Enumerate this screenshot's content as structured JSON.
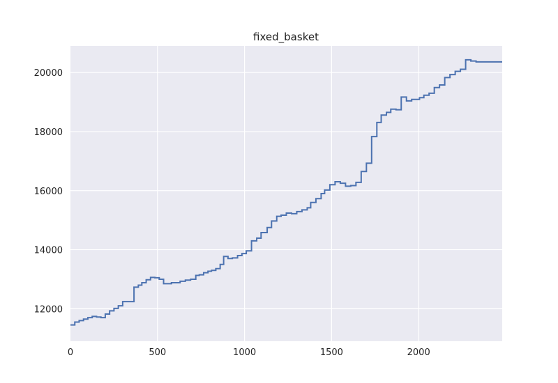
{
  "chart_data": {
    "type": "line",
    "drawstyle": "steps-post",
    "title": "fixed_basket",
    "xlabel": "",
    "ylabel": "",
    "xlim": [
      0,
      2480
    ],
    "ylim": [
      10900,
      20900
    ],
    "xticks": [
      0,
      500,
      1000,
      1500,
      2000
    ],
    "yticks": [
      12000,
      14000,
      16000,
      18000,
      20000
    ],
    "grid": true,
    "colors": {
      "background": "#eaeaf2",
      "grid": "#ffffff",
      "line": "#4c72b0"
    },
    "series": [
      {
        "x": [
          0,
          25,
          50,
          75,
          100,
          125,
          150,
          175,
          200,
          225,
          250,
          275,
          300,
          325,
          350,
          365,
          390,
          410,
          435,
          460,
          485,
          510,
          535,
          570,
          580,
          630,
          660,
          690,
          720,
          740,
          765,
          790,
          810,
          835,
          860,
          880,
          905,
          930,
          960,
          985,
          1010,
          1040,
          1070,
          1095,
          1130,
          1155,
          1185,
          1210,
          1240,
          1270,
          1300,
          1330,
          1360,
          1380,
          1410,
          1440,
          1460,
          1490,
          1520,
          1550,
          1580,
          1610,
          1640,
          1670,
          1700,
          1730,
          1760,
          1785,
          1815,
          1840,
          1870,
          1900,
          1930,
          1960,
          2005,
          2030,
          2060,
          2090,
          2120,
          2150,
          2180,
          2210,
          2240,
          2270,
          2300,
          2330,
          2360,
          2390,
          2420,
          2450,
          2480
        ],
        "y": [
          11450,
          11550,
          11600,
          11650,
          11700,
          11740,
          11720,
          11700,
          11820,
          11930,
          12010,
          12100,
          12240,
          12240,
          12240,
          12730,
          12800,
          12880,
          12980,
          13060,
          13050,
          13000,
          12850,
          12850,
          12880,
          12930,
          12970,
          13000,
          13130,
          13150,
          13220,
          13270,
          13300,
          13360,
          13500,
          13770,
          13700,
          13720,
          13800,
          13870,
          13960,
          14300,
          14390,
          14580,
          14750,
          14970,
          15130,
          15170,
          15240,
          15220,
          15290,
          15350,
          15420,
          15600,
          15730,
          15900,
          16020,
          16200,
          16300,
          16250,
          16150,
          16170,
          16280,
          16650,
          16930,
          17830,
          18310,
          18560,
          18650,
          18760,
          18740,
          19170,
          19040,
          19090,
          19150,
          19230,
          19300,
          19490,
          19580,
          19830,
          19930,
          20040,
          20110,
          20430,
          20390,
          20360,
          20360,
          20360,
          20360,
          20360,
          20360
        ]
      }
    ]
  }
}
